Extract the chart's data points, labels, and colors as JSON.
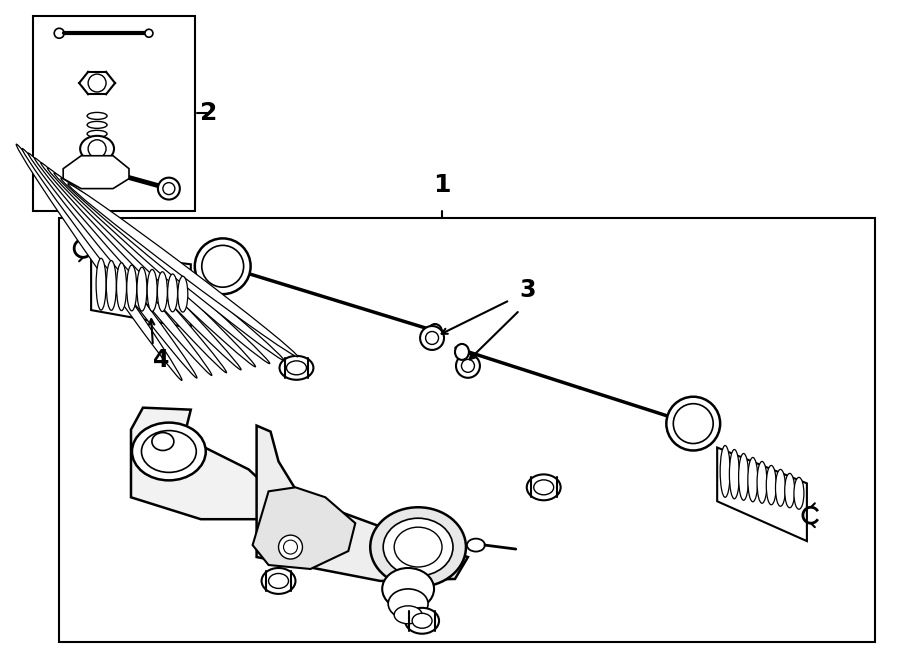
{
  "background_color": "#ffffff",
  "text_color": "#000000",
  "label_1": "1",
  "label_2": "2",
  "label_3": "3",
  "label_4": "4",
  "fig_width": 9.0,
  "fig_height": 6.61,
  "dpi": 100
}
